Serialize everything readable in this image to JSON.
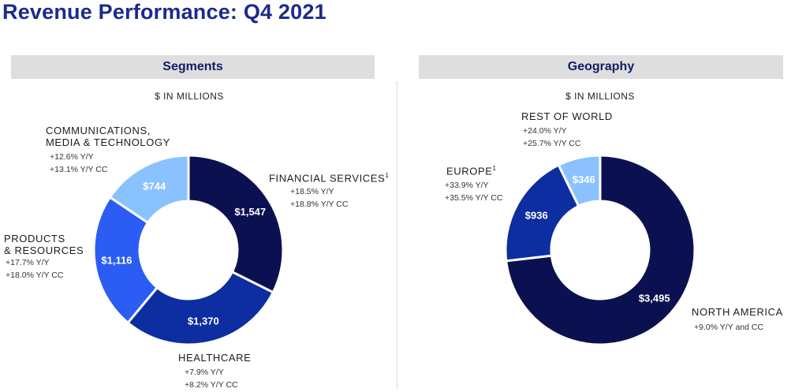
{
  "title": "Revenue Performance: Q4 2021",
  "palette": {
    "financial_services": "#0b1150",
    "healthcare": "#0d2ea0",
    "products_resources": "#2b5df5",
    "communications": "#8ac2ff",
    "north_america": "#0b1150",
    "europe": "#0d2ea0",
    "rest_of_world": "#8ac2ff",
    "title": "#1b2a8c",
    "header_bg": "#dedede"
  },
  "chart_data": [
    {
      "type": "pie",
      "title": "Segments",
      "units": "$ IN MILLIONS",
      "slices": [
        {
          "label": "FINANCIAL SERVICES",
          "footnote": "1",
          "value": 1547,
          "value_label": "$1,547",
          "growth": [
            "+18.5%  Y/Y",
            "+18.8%  Y/Y CC"
          ]
        },
        {
          "label": "HEALTHCARE",
          "footnote": "",
          "value": 1370,
          "value_label": "$1,370",
          "growth": [
            "+7.9%  Y/Y",
            "+8.2%  Y/Y CC"
          ]
        },
        {
          "label_lines": [
            "PRODUCTS",
            "& RESOURCES"
          ],
          "label": "PRODUCTS & RESOURCES",
          "footnote": "",
          "value": 1116,
          "value_label": "$1,116",
          "growth": [
            "+17.7%  Y/Y",
            "+18.0%  Y/Y CC"
          ]
        },
        {
          "label_lines": [
            "COMMUNICATIONS,",
            "MEDIA & TECHNOLOGY"
          ],
          "label": "COMMUNICATIONS, MEDIA & TECHNOLOGY",
          "footnote": "",
          "value": 744,
          "value_label": "$744",
          "growth": [
            "+12.6%  Y/Y",
            "+13.1%  Y/Y CC"
          ]
        }
      ]
    },
    {
      "type": "pie",
      "title": "Geography",
      "units": "$ IN MILLIONS",
      "slices": [
        {
          "label": "NORTH AMERICA",
          "footnote": "",
          "value": 3495,
          "value_label": "$3,495",
          "growth": [
            "+9.0%  Y/Y and CC"
          ]
        },
        {
          "label": "EUROPE",
          "footnote": "1",
          "value": 936,
          "value_label": "$936",
          "growth": [
            "+33.9%  Y/Y",
            "+35.5%  Y/Y CC"
          ]
        },
        {
          "label": "REST OF WORLD",
          "footnote": "",
          "value": 346,
          "value_label": "$346",
          "growth": [
            "+24.0%  Y/Y",
            "+25.7%  Y/Y CC"
          ]
        }
      ]
    }
  ]
}
